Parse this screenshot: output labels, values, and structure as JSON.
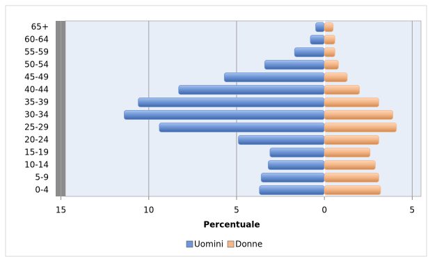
{
  "chart_data": {
    "type": "bar",
    "orientation": "horizontal",
    "x_label": "Percentuale",
    "categories": [
      "0-4",
      "5-9",
      "10-14",
      "15-19",
      "20-24",
      "25-29",
      "30-34",
      "35-39",
      "40-44",
      "45-49",
      "50-54",
      "55-59",
      "60-64",
      "65+"
    ],
    "series": [
      {
        "name": "Uomini",
        "color": "#6f96d6",
        "values": [
          -3.7,
          -3.6,
          -3.2,
          -3.1,
          -4.9,
          -9.4,
          -11.4,
          -10.6,
          -8.3,
          -5.7,
          -3.4,
          -1.7,
          -0.8,
          -0.5
        ]
      },
      {
        "name": "Donne",
        "color": "#f5b88a",
        "values": [
          3.2,
          3.1,
          2.9,
          2.6,
          3.1,
          4.1,
          3.9,
          3.1,
          2.0,
          1.3,
          0.8,
          0.6,
          0.6,
          0.5
        ]
      }
    ],
    "xlim": [
      -15.3,
      5.5
    ],
    "xticks": [
      {
        "value": -15,
        "label": "15"
      },
      {
        "value": -10,
        "label": "10"
      },
      {
        "value": -5,
        "label": "5"
      },
      0,
      5
    ],
    "grid": true,
    "legend": "bottom"
  }
}
